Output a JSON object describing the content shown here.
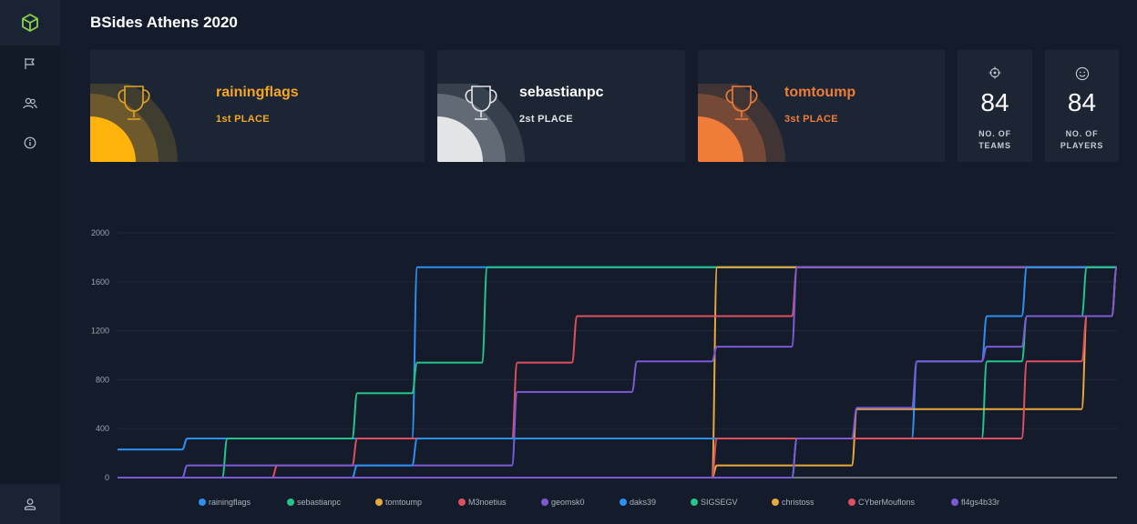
{
  "page_title": "BSides Athens 2020",
  "sidebar": {
    "items": [
      {
        "icon": "cube-icon"
      },
      {
        "icon": "flag-icon"
      },
      {
        "icon": "users-icon"
      },
      {
        "icon": "info-icon"
      },
      {
        "icon": "user-icon"
      }
    ]
  },
  "podium": [
    {
      "name": "rainingflags",
      "place": "1st PLACE",
      "color": "#f5a623"
    },
    {
      "name": "sebastianpc",
      "place": "2st PLACE",
      "color": "#ffffff"
    },
    {
      "name": "tomtoump",
      "place": "3st PLACE",
      "color": "#f07c3a"
    }
  ],
  "stats": {
    "teams": {
      "value": "84",
      "label_line1": "NO. OF",
      "label_line2": "TEAMS"
    },
    "players": {
      "value": "84",
      "label_line1": "NO. OF",
      "label_line2": "PLAYERS"
    }
  },
  "chart_data": {
    "type": "line",
    "x": [
      0,
      7,
      11,
      16,
      24,
      30,
      37,
      40,
      46,
      52,
      60,
      68,
      74,
      80,
      87,
      91,
      97,
      100
    ],
    "ylim": [
      0,
      2000
    ],
    "yticks": [
      0,
      400,
      800,
      1200,
      1600,
      2000
    ],
    "grid": true,
    "legend_position": "bottom",
    "series": [
      {
        "name": "rainingflags",
        "color": "#2d8ff0",
        "values": [
          230,
          320,
          320,
          320,
          320,
          1720,
          1720,
          1720,
          1720,
          1720,
          1720,
          1720,
          1720,
          1720,
          1720,
          1720,
          1720,
          1720
        ]
      },
      {
        "name": "sebastianpc",
        "color": "#25c48a",
        "values": [
          0,
          0,
          320,
          320,
          690,
          940,
          1720,
          1720,
          1720,
          1720,
          1720,
          1720,
          1720,
          1720,
          1720,
          1720,
          1720,
          1720
        ]
      },
      {
        "name": "tomtoump",
        "color": "#e9a83a",
        "values": [
          0,
          0,
          0,
          0,
          0,
          0,
          0,
          0,
          0,
          0,
          1720,
          1720,
          1720,
          1720,
          1720,
          1720,
          1720,
          1720
        ]
      },
      {
        "name": "M3noetius",
        "color": "#e04e5f",
        "values": [
          0,
          0,
          0,
          100,
          320,
          320,
          320,
          940,
          1320,
          1320,
          1320,
          1720,
          1720,
          1720,
          1720,
          1720,
          1720,
          1720
        ]
      },
      {
        "name": "geomsk0",
        "color": "#7c5ad6",
        "values": [
          0,
          100,
          100,
          100,
          100,
          100,
          100,
          700,
          700,
          950,
          1070,
          1720,
          1720,
          1720,
          1720,
          1720,
          1720,
          1720
        ]
      },
      {
        "name": "daks39",
        "color": "#2d8ff0",
        "values": [
          0,
          0,
          0,
          0,
          100,
          320,
          320,
          320,
          320,
          320,
          320,
          320,
          320,
          950,
          1320,
          1720,
          1720,
          1720
        ]
      },
      {
        "name": "SIGSEGV",
        "color": "#25c48a",
        "values": [
          0,
          0,
          0,
          0,
          0,
          0,
          0,
          0,
          0,
          0,
          0,
          320,
          320,
          320,
          950,
          1320,
          1720,
          1720
        ]
      },
      {
        "name": "christoss",
        "color": "#e9a83a",
        "values": [
          0,
          0,
          0,
          0,
          0,
          0,
          0,
          0,
          0,
          0,
          100,
          100,
          560,
          560,
          560,
          560,
          1320,
          1720
        ]
      },
      {
        "name": "CYberMouflons",
        "color": "#e04e5f",
        "values": [
          0,
          0,
          0,
          0,
          0,
          0,
          0,
          0,
          0,
          0,
          320,
          320,
          320,
          320,
          320,
          950,
          1320,
          1720
        ]
      },
      {
        "name": "fl4gs4b33r",
        "color": "#7c5ad6",
        "values": [
          0,
          0,
          0,
          0,
          0,
          0,
          0,
          0,
          0,
          0,
          0,
          320,
          570,
          950,
          1070,
          1320,
          1320,
          1720
        ]
      }
    ]
  }
}
